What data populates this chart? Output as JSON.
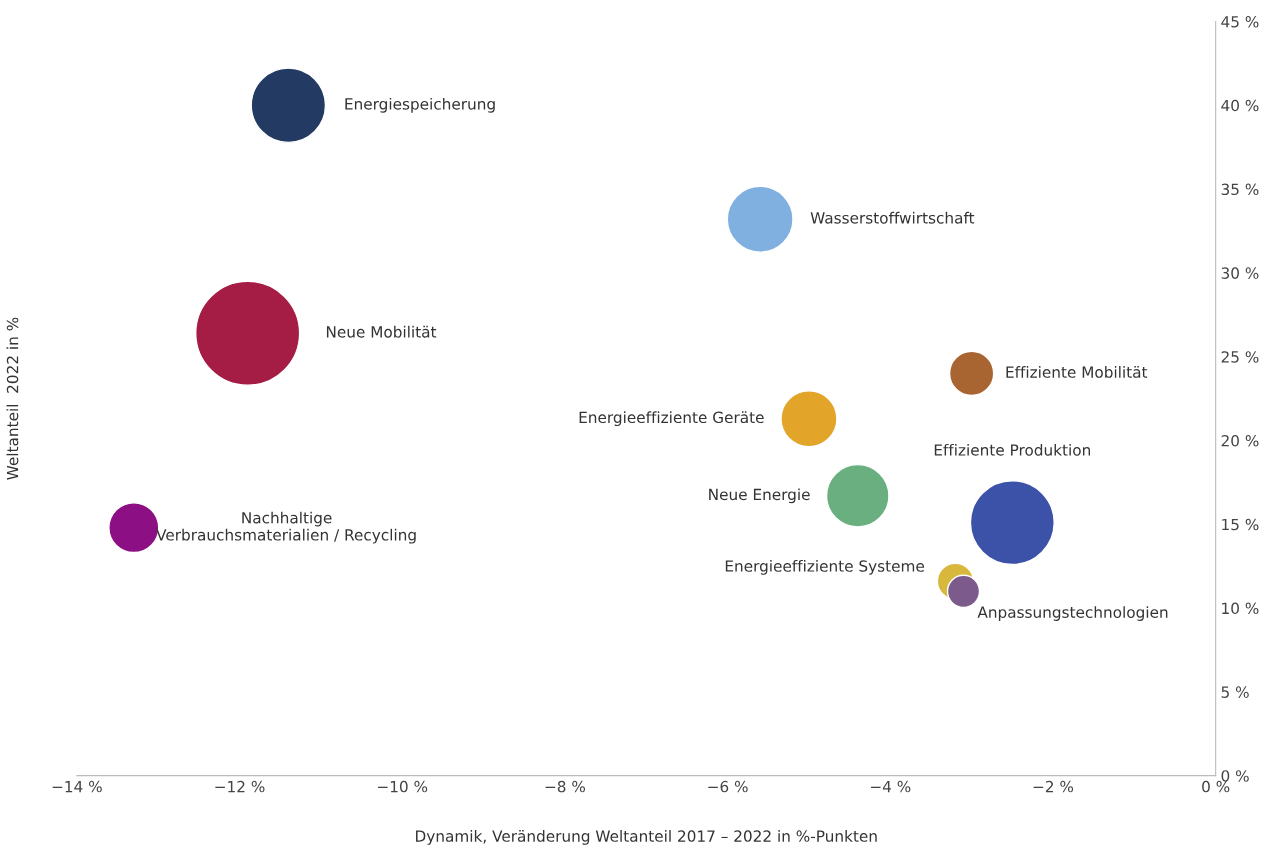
{
  "chart_data": {
    "type": "bubble",
    "xlabel": "Dynamik, Veränderung Weltanteil 2017 – 2022 in %-Punkten",
    "ylabel": "Weltanteil  2022 in %",
    "xlim": [
      -14,
      0
    ],
    "xticks": [
      {
        "value": -14,
        "label": "−14 %"
      },
      {
        "value": -12,
        "label": "−12 %"
      },
      {
        "value": -10,
        "label": "−10 %"
      },
      {
        "value": -8,
        "label": "−8 %"
      },
      {
        "value": -6,
        "label": "−6 %"
      },
      {
        "value": -4,
        "label": "−4 %"
      },
      {
        "value": -2,
        "label": "−2 %"
      },
      {
        "value": 0,
        "label": "0 %"
      }
    ],
    "ylim": [
      0,
      45
    ],
    "yticks": [
      {
        "value": 0,
        "label": "0 %"
      },
      {
        "value": 5,
        "label": "5 %"
      },
      {
        "value": 10,
        "label": "10 %"
      },
      {
        "value": 15,
        "label": "15 %"
      },
      {
        "value": 20,
        "label": "20 %"
      },
      {
        "value": 25,
        "label": "25 %"
      },
      {
        "value": 30,
        "label": "30 %"
      },
      {
        "value": 35,
        "label": "35 %"
      },
      {
        "value": 40,
        "label": "40 %"
      },
      {
        "value": 45,
        "label": "45 %"
      }
    ],
    "grid": false,
    "legend": false,
    "series": [
      {
        "name": "Energiespeicherung",
        "color": "#233a63",
        "x": [
          -11.4
        ],
        "values": [
          40.0
        ],
        "sizes": [
          0.51
        ]
      },
      {
        "name": "Wasserstoffwirtschaft",
        "color": "#7fb0e0",
        "x": [
          -5.6
        ],
        "values": [
          33.2
        ],
        "sizes": [
          0.4
        ]
      },
      {
        "name": "Neue Mobilität",
        "color": "#a51c45",
        "x": [
          -11.9
        ],
        "values": [
          26.4
        ],
        "sizes": [
          1
        ]
      },
      {
        "name": "Effiziente Mobilität",
        "color": "#a86532",
        "x": [
          -3.0
        ],
        "values": [
          24.0
        ],
        "sizes": [
          0.18
        ]
      },
      {
        "name": "Energieeffiziente Geräte",
        "color": "#e2a52a",
        "x": [
          -5.0
        ],
        "values": [
          21.3
        ],
        "sizes": [
          0.29
        ]
      },
      {
        "name": "Neue Energie",
        "color": "#6aaf7f",
        "x": [
          -4.4
        ],
        "values": [
          16.7
        ],
        "sizes": [
          0.36
        ]
      },
      {
        "name": "Effiziente Produktion",
        "color": "#3c52a8",
        "x": [
          -2.5
        ],
        "values": [
          15.1
        ],
        "sizes": [
          0.65
        ]
      },
      {
        "name": "Nachhaltige\nVerbrauchsmaterialien / Recycling",
        "color": "#8c0f83",
        "x": [
          -13.3
        ],
        "values": [
          14.8
        ],
        "sizes": [
          0.23
        ]
      },
      {
        "name": "Energieeffiziente Systeme",
        "color": "#d7b83c",
        "x": [
          -3.2
        ],
        "values": [
          11.6
        ],
        "sizes": [
          0.12
        ]
      },
      {
        "name": "Anpassungstechnologien",
        "color": "#7d5a8c",
        "x": [
          -3.1
        ],
        "values": [
          11.0
        ],
        "sizes": [
          0.095
        ]
      }
    ]
  }
}
